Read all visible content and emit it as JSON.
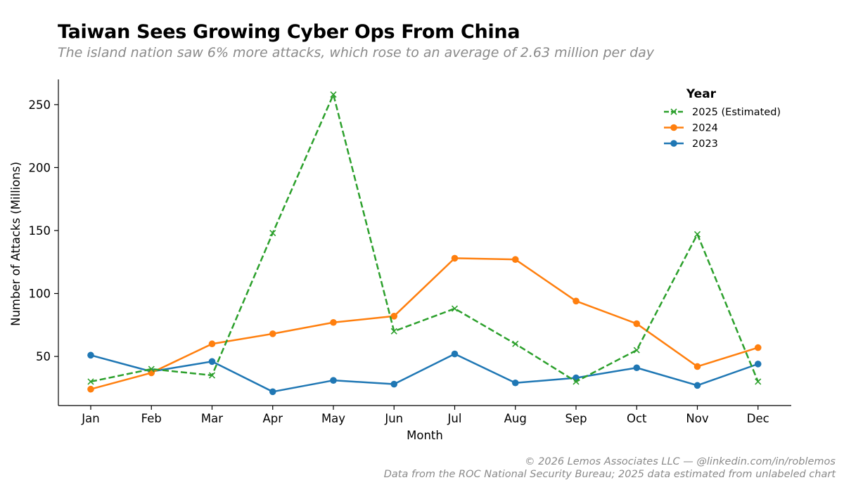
{
  "header": {
    "title": "Taiwan Sees Growing Cyber Ops From China",
    "subtitle": "The island nation saw 6% more attacks, which rose to an average of 2.63 million per day"
  },
  "footer": {
    "line1": "© 2026 Lemos Associates LLC — @linkedin.com/in/roblemos",
    "line2": "Data from the ROC National Security Bureau; 2025 data estimated from unlabeled chart"
  },
  "chart_data": {
    "type": "line",
    "xlabel": "Month",
    "ylabel": "Number of Attacks (Millions)",
    "categories": [
      "Jan",
      "Feb",
      "Mar",
      "Apr",
      "May",
      "Jun",
      "Jul",
      "Aug",
      "Sep",
      "Oct",
      "Nov",
      "Dec"
    ],
    "ylim": [
      11,
      270
    ],
    "yticks": [
      50,
      100,
      150,
      200,
      250
    ],
    "grid": false,
    "legend": {
      "title": "Year",
      "placement": "top-right"
    },
    "series": [
      {
        "name": "2025 (Estimated)",
        "color": "#2ca02c",
        "style": "dashed",
        "marker": "x",
        "values": [
          30,
          40,
          35,
          148,
          258,
          70,
          88,
          60,
          30,
          55,
          147,
          30
        ]
      },
      {
        "name": "2024",
        "color": "#ff7f0e",
        "style": "solid",
        "marker": "circle",
        "values": [
          24,
          37,
          60,
          68,
          77,
          82,
          128,
          127,
          94,
          76,
          42,
          57
        ]
      },
      {
        "name": "2023",
        "color": "#1f77b4",
        "style": "solid",
        "marker": "circle",
        "values": [
          51,
          38,
          46,
          22,
          31,
          28,
          52,
          29,
          33,
          41,
          27,
          44
        ]
      }
    ]
  }
}
